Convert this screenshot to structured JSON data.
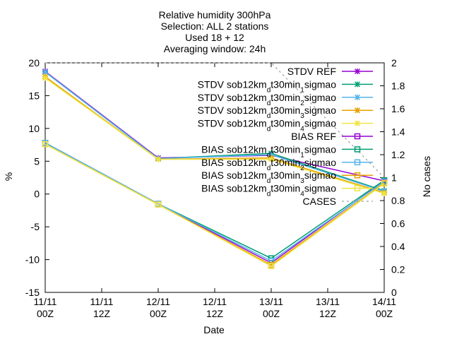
{
  "chart_data": {
    "type": "line",
    "title_lines": [
      "Relative humidity 300hPa",
      "Selection: ALL       2 stations",
      "Used 18 + 12",
      "Averaging window: 24h"
    ],
    "xlabel": "Date",
    "ylabel": "%",
    "y2label": "No cases",
    "ylim": [
      -15,
      20
    ],
    "y2lim": [
      0,
      2
    ],
    "yticks": [
      -15,
      -10,
      -5,
      0,
      5,
      10,
      15,
      20
    ],
    "y2ticks": [
      "0",
      "0.2",
      "0.4",
      "0.6",
      "0.8",
      "1",
      "1.2",
      "1.4",
      "1.6",
      "1.8",
      "2"
    ],
    "xticks": [
      {
        "top": "11/11",
        "bottom": "00Z"
      },
      {
        "top": "11/11",
        "bottom": "12Z"
      },
      {
        "top": "12/11",
        "bottom": "00Z"
      },
      {
        "top": "12/11",
        "bottom": "12Z"
      },
      {
        "top": "13/11",
        "bottom": "00Z"
      },
      {
        "top": "13/11",
        "bottom": "12Z"
      },
      {
        "top": "14/11",
        "bottom": "00Z"
      }
    ],
    "x": [
      0,
      1,
      2,
      3
    ],
    "grid": false,
    "legend_position": "top-right",
    "series": [
      {
        "name": "STDV REF",
        "name_base": "STDV sob12km",
        "sub": "",
        "name_tail": "",
        "color": "#9400d3",
        "marker": "star",
        "values": [
          18.7,
          5.5,
          5.9,
          2.0
        ]
      },
      {
        "name": "STDV sob12km_dt30min_1sigmao",
        "name_base": "STDV sob12km",
        "sub": "d",
        "name_tail": "t30min",
        "sub2": "1",
        "tail2": "sigmao",
        "color": "#009e73",
        "marker": "star",
        "values": [
          18.6,
          5.4,
          6.2,
          0.5
        ]
      },
      {
        "name": "STDV sob12km_dt30min_2sigmao",
        "name_base": "STDV sob12km",
        "sub": "d",
        "name_tail": "t30min",
        "sub2": "2",
        "tail2": "sigmao",
        "color": "#56b4e9",
        "marker": "star",
        "values": [
          18.6,
          5.4,
          6.0,
          0.4
        ]
      },
      {
        "name": "STDV sob12km_dt30min_3sigmao",
        "name_base": "STDV sob12km",
        "sub": "d",
        "name_tail": "t30min",
        "sub2": "3",
        "tail2": "sigmao",
        "color": "#e69f00",
        "marker": "star",
        "values": [
          17.9,
          5.3,
          5.5,
          0.2
        ]
      },
      {
        "name": "STDV sob12km_dt30min_4sigmao",
        "name_base": "STDV sob12km",
        "sub": "d",
        "name_tail": "t30min",
        "sub2": "4",
        "tail2": "sigmao",
        "color": "#f0e442",
        "marker": "star",
        "values": [
          17.7,
          5.3,
          5.3,
          0.1
        ]
      },
      {
        "name": "BIAS REF",
        "color": "#9400d3",
        "marker": "square",
        "values": [
          7.8,
          -1.5,
          -10.5,
          2.0
        ]
      },
      {
        "name": "BIAS sob12km_dt30min_1sigmao",
        "name_base": "BIAS sob12km",
        "sub": "d",
        "name_tail": "t30min",
        "sub2": "1",
        "tail2": "sigmao",
        "color": "#009e73",
        "marker": "square",
        "values": [
          7.8,
          -1.5,
          -9.8,
          2.1
        ]
      },
      {
        "name": "BIAS sob12km_dt30min_2sigmao",
        "name_base": "BIAS sob12km",
        "sub": "d",
        "name_tail": "t30min",
        "sub2": "2",
        "tail2": "sigmao",
        "color": "#56b4e9",
        "marker": "square",
        "values": [
          7.8,
          -1.5,
          -10.2,
          1.9
        ]
      },
      {
        "name": "BIAS sob12km_dt30min_3sigmao",
        "name_base": "BIAS sob12km",
        "sub": "d",
        "name_tail": "t30min",
        "sub2": "3",
        "tail2": "sigmao",
        "color": "#e69f00",
        "marker": "square",
        "values": [
          7.6,
          -1.6,
          -10.8,
          1.7
        ]
      },
      {
        "name": "BIAS sob12km_dt30min_4sigmao",
        "name_base": "BIAS sob12km",
        "sub": "d",
        "name_tail": "t30min",
        "sub2": "4",
        "tail2": "sigmao",
        "color": "#f0e442",
        "marker": "square",
        "values": [
          7.6,
          -1.6,
          -11.0,
          1.6
        ]
      },
      {
        "name": "CASES",
        "color": "#a0a0a0",
        "marker": "none",
        "dashed": true,
        "axis": "y2",
        "values": [
          2,
          2,
          2,
          1
        ]
      }
    ]
  }
}
